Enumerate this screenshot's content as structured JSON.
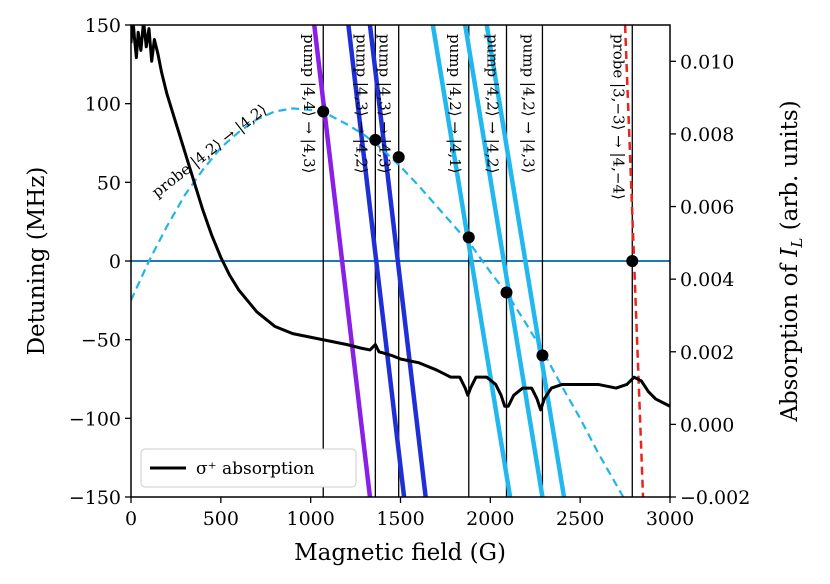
{
  "chart_data": {
    "type": "line",
    "xlabel": "Magnetic field (G)",
    "ylabel": "Detuning (MHz)",
    "y2label": "Absorption of I_L (arb. units)",
    "xlim": [
      0,
      3000
    ],
    "ylim": [
      -150,
      150
    ],
    "y2lim": [
      -0.002,
      0.011
    ],
    "xticks": [
      "0",
      "500",
      "1000",
      "1500",
      "2000",
      "2500",
      "3000"
    ],
    "yticks": [
      "150",
      "100",
      "50",
      "0",
      "−50",
      "−100",
      "−150"
    ],
    "y2ticks": [
      "0.010",
      "0.008",
      "0.006",
      "0.004",
      "0.002",
      "0.000",
      "−0.002"
    ],
    "legend": {
      "label": "σ⁺ absorption",
      "placement": "lower-left"
    },
    "colors": {
      "absorption": "#000000",
      "zero_line": "#1f77b4",
      "probe_dashed": "#21b4e8",
      "probe_red": "#e8241e",
      "pump_purple": "#8a1fe8",
      "pump_blue": "#1f2fd6",
      "pump_light": "#21b8f0"
    },
    "zero_line": {
      "y": 0
    },
    "probe_curve": {
      "label": "probe |4,2⟩ → |4,2⟩",
      "points": [
        [
          0,
          -25
        ],
        [
          100,
          0
        ],
        [
          200,
          22
        ],
        [
          300,
          42
        ],
        [
          400,
          58
        ],
        [
          500,
          72
        ],
        [
          600,
          82
        ],
        [
          700,
          90
        ],
        [
          800,
          95
        ],
        [
          900,
          97
        ],
        [
          1000,
          96
        ],
        [
          1100,
          93
        ],
        [
          1200,
          87
        ],
        [
          1300,
          80
        ],
        [
          1400,
          71
        ],
        [
          1500,
          60
        ],
        [
          1600,
          48
        ],
        [
          1700,
          35
        ],
        [
          1800,
          22
        ],
        [
          1900,
          9
        ],
        [
          2000,
          -7
        ],
        [
          2100,
          -22
        ],
        [
          2200,
          -40
        ],
        [
          2300,
          -59
        ],
        [
          2400,
          -80
        ],
        [
          2500,
          -100
        ],
        [
          2600,
          -122
        ],
        [
          2700,
          -142
        ],
        [
          2740,
          -150
        ]
      ]
    },
    "red_probe": {
      "label": "probe |3,−3⟩ → |4,−4⟩",
      "points": [
        [
          2750,
          150
        ],
        [
          2850,
          -150
        ]
      ]
    },
    "pump_lines": [
      {
        "label": "pump |4,4⟩ → |4,3⟩",
        "color": "purple",
        "points": [
          [
            1020,
            150
          ],
          [
            1330,
            -150
          ]
        ]
      },
      {
        "label": "pump |4,3⟩ → |4,2⟩",
        "color": "blue",
        "points": [
          [
            1210,
            150
          ],
          [
            1520,
            -150
          ]
        ]
      },
      {
        "label": "pump |4,3⟩ → |4,3⟩",
        "color": "blue",
        "points": [
          [
            1330,
            150
          ],
          [
            1640,
            -150
          ]
        ]
      },
      {
        "label": "pump |4,2⟩ → |4,1⟩",
        "color": "light",
        "points": [
          [
            1680,
            150
          ],
          [
            2110,
            -150
          ]
        ]
      },
      {
        "label": "pump |4,2⟩ → |4,2⟩",
        "color": "light",
        "points": [
          [
            1860,
            150
          ],
          [
            2290,
            -150
          ]
        ]
      },
      {
        "label": "pump |4,2⟩ → |4,3⟩",
        "color": "light",
        "points": [
          [
            1980,
            150
          ],
          [
            2410,
            -150
          ]
        ]
      }
    ],
    "vertical_lines_x": [
      1070,
      1360,
      1490,
      1880,
      2090,
      2290,
      2790
    ],
    "markers": [
      [
        1070,
        95
      ],
      [
        1360,
        77
      ],
      [
        1490,
        66
      ],
      [
        1880,
        15
      ],
      [
        2090,
        -20
      ],
      [
        2290,
        -60
      ],
      [
        2790,
        0
      ]
    ],
    "absorption_series": {
      "name": "σ⁺ absorption",
      "axis": "right",
      "points": [
        [
          0,
          0.0105
        ],
        [
          10,
          0.0112
        ],
        [
          20,
          0.0106
        ],
        [
          30,
          0.0101
        ],
        [
          40,
          0.0108
        ],
        [
          55,
          0.0103
        ],
        [
          70,
          0.0111
        ],
        [
          85,
          0.0104
        ],
        [
          100,
          0.0109
        ],
        [
          115,
          0.01
        ],
        [
          130,
          0.0106
        ],
        [
          150,
          0.0102
        ],
        [
          170,
          0.0097
        ],
        [
          200,
          0.0091
        ],
        [
          250,
          0.0083
        ],
        [
          300,
          0.0075
        ],
        [
          350,
          0.0067
        ],
        [
          400,
          0.0059
        ],
        [
          450,
          0.0052
        ],
        [
          500,
          0.0046
        ],
        [
          550,
          0.0041
        ],
        [
          600,
          0.0037
        ],
        [
          650,
          0.0034
        ],
        [
          700,
          0.0031
        ],
        [
          750,
          0.0029
        ],
        [
          800,
          0.0027
        ],
        [
          850,
          0.0026
        ],
        [
          900,
          0.0025
        ],
        [
          1000,
          0.0024
        ],
        [
          1100,
          0.0023
        ],
        [
          1200,
          0.0022
        ],
        [
          1280,
          0.0021
        ],
        [
          1330,
          0.00205
        ],
        [
          1360,
          0.0022
        ],
        [
          1380,
          0.002
        ],
        [
          1450,
          0.0019
        ],
        [
          1500,
          0.0018
        ],
        [
          1600,
          0.0017
        ],
        [
          1700,
          0.0015
        ],
        [
          1780,
          0.0013
        ],
        [
          1830,
          0.0013
        ],
        [
          1860,
          0.001
        ],
        [
          1875,
          0.0008
        ],
        [
          1890,
          0.001
        ],
        [
          1920,
          0.0013
        ],
        [
          1980,
          0.0013
        ],
        [
          2030,
          0.0011
        ],
        [
          2060,
          0.0008
        ],
        [
          2080,
          0.0005
        ],
        [
          2100,
          0.0005
        ],
        [
          2130,
          0.0008
        ],
        [
          2180,
          0.001
        ],
        [
          2230,
          0.001
        ],
        [
          2260,
          0.0007
        ],
        [
          2280,
          0.0004
        ],
        [
          2300,
          0.0007
        ],
        [
          2340,
          0.001
        ],
        [
          2400,
          0.0011
        ],
        [
          2500,
          0.0011
        ],
        [
          2600,
          0.0011
        ],
        [
          2700,
          0.001
        ],
        [
          2760,
          0.0011
        ],
        [
          2800,
          0.0013
        ],
        [
          2840,
          0.0012
        ],
        [
          2880,
          0.0009
        ],
        [
          2920,
          0.0007
        ],
        [
          2960,
          0.0006
        ],
        [
          3000,
          0.0005
        ]
      ]
    }
  }
}
